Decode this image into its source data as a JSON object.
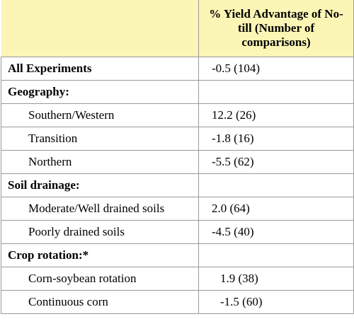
{
  "table": {
    "header": {
      "col1": "",
      "col2": "% Yield Advantage of No-till (Number of comparisons)"
    },
    "rows": [
      {
        "label": "All Experiments",
        "value": "-0.5 (104)",
        "type": "main"
      },
      {
        "label": "Geography:",
        "value": "",
        "type": "main"
      },
      {
        "label": "Southern/Western",
        "value": "12.2  (26)",
        "type": "sub"
      },
      {
        "label": "Transition",
        "value": "-1.8  (16)",
        "type": "sub"
      },
      {
        "label": "Northern",
        "value": "-5.5  (62)",
        "type": "sub"
      },
      {
        "label": "Soil drainage:",
        "value": "",
        "type": "main"
      },
      {
        "label": "Moderate/Well drained soils",
        "value": "2.0  (64)",
        "type": "sub"
      },
      {
        "label": "Poorly drained soils",
        "value": "-4.5  (40)",
        "type": "sub"
      },
      {
        "label": "Crop rotation:*",
        "value": "",
        "type": "main"
      },
      {
        "label": "Corn-soybean rotation",
        "value": "1.9  (38)",
        "type": "sub"
      },
      {
        "label": "Continuous corn",
        "value": "-1.5 (60)",
        "type": "sub"
      }
    ]
  }
}
